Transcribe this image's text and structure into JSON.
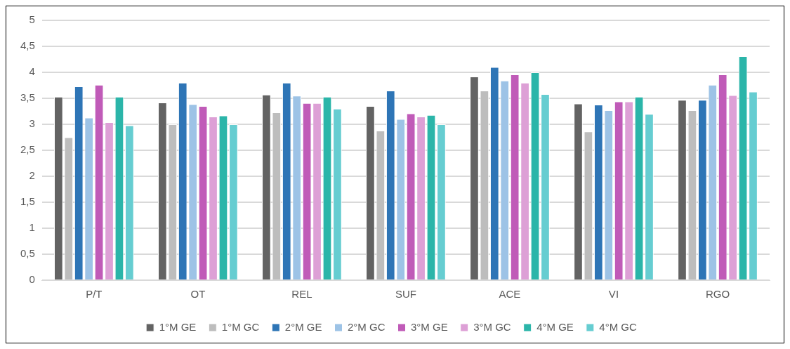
{
  "chart_data": {
    "type": "bar",
    "categories": [
      "P/T",
      "OT",
      "REL",
      "SUF",
      "ACE",
      "VI",
      "RGO"
    ],
    "series": [
      {
        "name": "1°M GE",
        "color": "#636363",
        "values": [
          3.53,
          3.42,
          3.57,
          3.35,
          3.92,
          3.4,
          3.47
        ]
      },
      {
        "name": "1°M GC",
        "color": "#bdbdbd",
        "values": [
          2.75,
          3.0,
          3.23,
          2.88,
          3.65,
          2.86,
          3.27
        ]
      },
      {
        "name": "2°M GE",
        "color": "#2e75b6",
        "values": [
          3.73,
          3.8,
          3.8,
          3.65,
          4.1,
          3.38,
          3.47
        ]
      },
      {
        "name": "2°M GC",
        "color": "#9dc3e6",
        "values": [
          3.13,
          3.39,
          3.55,
          3.1,
          3.84,
          3.27,
          3.76
        ]
      },
      {
        "name": "3°M GE",
        "color": "#c05bb8",
        "values": [
          3.76,
          3.35,
          3.41,
          3.21,
          3.96,
          3.44,
          3.96
        ]
      },
      {
        "name": "3°M GC",
        "color": "#dda0d6",
        "values": [
          3.04,
          3.15,
          3.41,
          3.15,
          3.8,
          3.44,
          3.56
        ]
      },
      {
        "name": "4°M GE",
        "color": "#2bb5a9",
        "values": [
          3.53,
          3.17,
          3.53,
          3.18,
          4.0,
          3.53,
          4.31
        ]
      },
      {
        "name": "4°M GC",
        "color": "#66cdd1",
        "values": [
          2.98,
          3.0,
          3.3,
          3.0,
          3.58,
          3.2,
          3.63
        ]
      }
    ],
    "ylim": [
      0,
      5
    ],
    "yticks": [
      {
        "value": 0,
        "label": "0"
      },
      {
        "value": 0.5,
        "label": "0,5"
      },
      {
        "value": 1,
        "label": "1"
      },
      {
        "value": 1.5,
        "label": "1,5"
      },
      {
        "value": 2,
        "label": "2"
      },
      {
        "value": 2.5,
        "label": "2,5"
      },
      {
        "value": 3,
        "label": "3"
      },
      {
        "value": 3.5,
        "label": "3,5"
      },
      {
        "value": 4,
        "label": "4"
      },
      {
        "value": 4.5,
        "label": "4,5"
      },
      {
        "value": 5,
        "label": "5"
      }
    ],
    "grid": "y",
    "legend": "bottom"
  }
}
